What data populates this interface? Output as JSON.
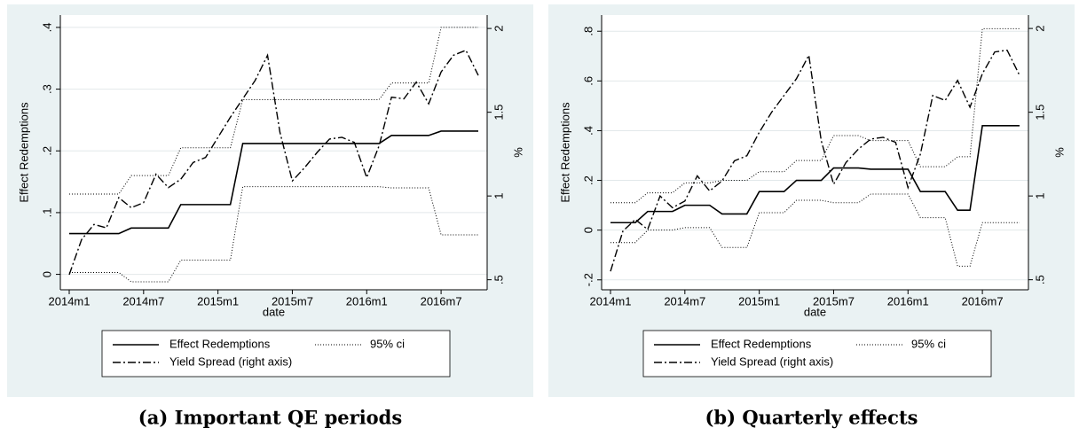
{
  "chart_data": [
    {
      "type": "line",
      "caption": "(a) Important QE periods",
      "xlabel": "date",
      "ylabel": "Effect Redemptions",
      "y2label": "%",
      "x": [
        "2014m1",
        "2014m2",
        "2014m3",
        "2014m4",
        "2014m5",
        "2014m6",
        "2014m7",
        "2014m8",
        "2014m9",
        "2014m10",
        "2014m11",
        "2014m12",
        "2015m1",
        "2015m2",
        "2015m3",
        "2015m4",
        "2015m5",
        "2015m6",
        "2015m7",
        "2015m8",
        "2015m9",
        "2015m10",
        "2015m11",
        "2015m12",
        "2016m1",
        "2016m2",
        "2016m3",
        "2016m4",
        "2016m5",
        "2016m6",
        "2016m7",
        "2016m8",
        "2016m9",
        "2016m10"
      ],
      "xticks": [
        "2014m1",
        "2014m7",
        "2015m1",
        "2015m7",
        "2016m1",
        "2016m7"
      ],
      "ylim": [
        -0.025,
        0.42
      ],
      "yticks": [
        {
          "value": 0,
          "label": "0"
        },
        {
          "value": 0.1,
          "label": ".1"
        },
        {
          "value": 0.2,
          "label": ".2"
        },
        {
          "value": 0.3,
          "label": ".3"
        },
        {
          "value": 0.4,
          "label": ".4"
        }
      ],
      "y2lim": [
        0.44,
        2.08
      ],
      "y2ticks": [
        {
          "value": 0.5,
          "label": ".5"
        },
        1,
        1.5,
        2
      ],
      "grid": true,
      "series": [
        {
          "name": "Effect Redemptions",
          "color": "#000000",
          "dash": "solid",
          "values": [
            0.066,
            0.066,
            0.066,
            0.066,
            0.066,
            0.075,
            0.075,
            0.075,
            0.075,
            0.113,
            0.113,
            0.113,
            0.113,
            0.113,
            0.212,
            0.212,
            0.212,
            0.212,
            0.212,
            0.212,
            0.212,
            0.212,
            0.212,
            0.212,
            0.212,
            0.212,
            0.225,
            0.225,
            0.225,
            0.225,
            0.232,
            0.232,
            0.232,
            0.232
          ]
        },
        {
          "name": "95% ci",
          "color": "#000000",
          "dash": "dotted",
          "upper": [
            0.13,
            0.13,
            0.13,
            0.13,
            0.13,
            0.16,
            0.16,
            0.16,
            0.16,
            0.205,
            0.205,
            0.205,
            0.205,
            0.205,
            0.283,
            0.283,
            0.283,
            0.283,
            0.283,
            0.283,
            0.283,
            0.283,
            0.283,
            0.283,
            0.283,
            0.283,
            0.31,
            0.31,
            0.31,
            0.31,
            0.4,
            0.4,
            0.4,
            0.4
          ],
          "lower": [
            0.003,
            0.003,
            0.003,
            0.003,
            0.003,
            -0.012,
            -0.012,
            -0.012,
            -0.012,
            0.023,
            0.023,
            0.023,
            0.023,
            0.023,
            0.142,
            0.142,
            0.142,
            0.142,
            0.142,
            0.142,
            0.142,
            0.142,
            0.142,
            0.142,
            0.142,
            0.142,
            0.14,
            0.14,
            0.14,
            0.14,
            0.064,
            0.064,
            0.064,
            0.064
          ]
        },
        {
          "name": "Yield Spread (right axis)",
          "color": "#000000",
          "dash": "dashdot",
          "axis": "y2",
          "values": [
            0.53,
            0.74,
            0.83,
            0.81,
            0.99,
            0.93,
            0.96,
            1.13,
            1.05,
            1.1,
            1.2,
            1.23,
            1.35,
            1.47,
            1.58,
            1.69,
            1.84,
            1.38,
            1.09,
            1.17,
            1.26,
            1.34,
            1.35,
            1.32,
            1.11,
            1.3,
            1.59,
            1.58,
            1.68,
            1.55,
            1.74,
            1.84,
            1.87,
            1.72
          ]
        }
      ]
    },
    {
      "type": "line",
      "caption": "(b) Quarterly effects",
      "xlabel": "date",
      "ylabel": "Effect Redemptions",
      "y2label": "%",
      "x": [
        "2014m1",
        "2014m2",
        "2014m3",
        "2014m4",
        "2014m5",
        "2014m6",
        "2014m7",
        "2014m8",
        "2014m9",
        "2014m10",
        "2014m11",
        "2014m12",
        "2015m1",
        "2015m2",
        "2015m3",
        "2015m4",
        "2015m5",
        "2015m6",
        "2015m7",
        "2015m8",
        "2015m9",
        "2015m10",
        "2015m11",
        "2015m12",
        "2016m1",
        "2016m2",
        "2016m3",
        "2016m4",
        "2016m5",
        "2016m6",
        "2016m7",
        "2016m8",
        "2016m9",
        "2016m10"
      ],
      "xticks": [
        "2014m1",
        "2014m7",
        "2015m1",
        "2015m7",
        "2016m1",
        "2016m7"
      ],
      "ylim": [
        -0.24,
        0.865
      ],
      "yticks": [
        {
          "value": -0.2,
          "label": "-.2"
        },
        {
          "value": 0,
          "label": "0"
        },
        {
          "value": 0.2,
          "label": ".2"
        },
        {
          "value": 0.4,
          "label": ".4"
        },
        {
          "value": 0.6,
          "label": ".6"
        },
        {
          "value": 0.8,
          "label": ".8"
        }
      ],
      "y2lim": [
        0.44,
        2.08
      ],
      "y2ticks": [
        {
          "value": 0.5,
          "label": ".5"
        },
        1,
        1.5,
        2
      ],
      "grid": true,
      "series": [
        {
          "name": "Effect Redemptions",
          "color": "#000000",
          "dash": "solid",
          "values": [
            0.03,
            0.03,
            0.03,
            0.075,
            0.075,
            0.075,
            0.1,
            0.1,
            0.1,
            0.065,
            0.065,
            0.065,
            0.155,
            0.155,
            0.155,
            0.2,
            0.2,
            0.2,
            0.25,
            0.25,
            0.25,
            0.245,
            0.245,
            0.245,
            0.245,
            0.155,
            0.155,
            0.155,
            0.08,
            0.08,
            0.42,
            0.42,
            0.42,
            0.42
          ]
        },
        {
          "name": "95% ci",
          "color": "#000000",
          "dash": "dotted",
          "upper": [
            0.11,
            0.11,
            0.11,
            0.15,
            0.15,
            0.15,
            0.19,
            0.19,
            0.19,
            0.2,
            0.2,
            0.2,
            0.235,
            0.235,
            0.235,
            0.28,
            0.28,
            0.28,
            0.38,
            0.38,
            0.38,
            0.36,
            0.36,
            0.36,
            0.36,
            0.255,
            0.255,
            0.255,
            0.295,
            0.295,
            0.81,
            0.81,
            0.81,
            0.81
          ],
          "lower": [
            -0.05,
            -0.05,
            -0.05,
            0,
            0,
            0,
            0.01,
            0.01,
            0.01,
            -0.07,
            -0.07,
            -0.07,
            0.07,
            0.07,
            0.07,
            0.12,
            0.12,
            0.12,
            0.11,
            0.11,
            0.11,
            0.145,
            0.145,
            0.145,
            0.145,
            0.05,
            0.05,
            0.05,
            -0.145,
            -0.145,
            0.03,
            0.03,
            0.03,
            0.03
          ]
        },
        {
          "name": "Yield Spread (right axis)",
          "color": "#000000",
          "dash": "dashdot",
          "axis": "y2",
          "values": [
            0.55,
            0.79,
            0.86,
            0.8,
            1.0,
            0.93,
            0.97,
            1.12,
            1.03,
            1.09,
            1.21,
            1.24,
            1.38,
            1.5,
            1.6,
            1.7,
            1.84,
            1.33,
            1.07,
            1.2,
            1.28,
            1.34,
            1.35,
            1.32,
            1.05,
            1.25,
            1.6,
            1.57,
            1.69,
            1.53,
            1.73,
            1.86,
            1.87,
            1.72
          ]
        }
      ]
    }
  ]
}
